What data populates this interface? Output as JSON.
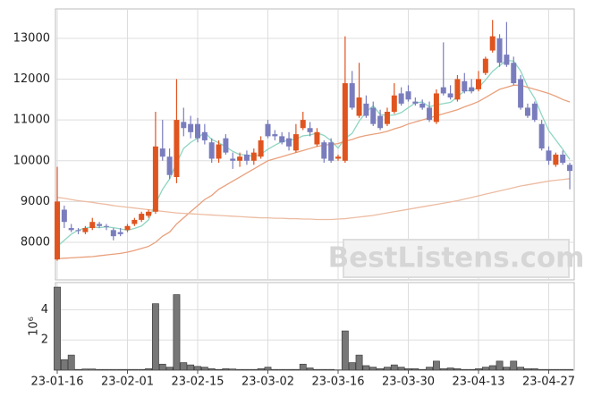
{
  "chart_data": [
    {
      "type": "candlestick",
      "open": [
        7580,
        8800,
        8350,
        8300,
        8250,
        8350,
        8450,
        8400,
        8300,
        8250,
        8300,
        8450,
        8550,
        8650,
        8750,
        10300,
        10100,
        9600,
        10950,
        10900,
        10900,
        10700,
        10450,
        10050,
        10550,
        10050,
        10000,
        10150,
        10000,
        10100,
        10900,
        10650,
        10600,
        10550,
        10250,
        10800,
        10800,
        10400,
        10450,
        10450,
        10050,
        10000,
        11900,
        11100,
        11400,
        11300,
        11100,
        10900,
        11200,
        11650,
        11700,
        11450,
        11400,
        11300,
        10950,
        11800,
        11650,
        11500,
        11950,
        11800,
        11750,
        12150,
        12700,
        13000,
        12600,
        12400,
        12000,
        11300,
        11400,
        10900,
        10250,
        9900,
        10150,
        9900
      ],
      "high": [
        9850,
        8900,
        8450,
        8350,
        8400,
        8600,
        8500,
        8450,
        8350,
        8350,
        8450,
        8600,
        8750,
        8800,
        11200,
        11000,
        10300,
        12000,
        11300,
        11100,
        11050,
        10900,
        10550,
        10500,
        10650,
        10200,
        10200,
        10250,
        10300,
        10600,
        11000,
        10750,
        10700,
        10700,
        10900,
        11200,
        10950,
        10800,
        10500,
        10550,
        10150,
        13050,
        12200,
        12400,
        11600,
        11450,
        11250,
        11300,
        11900,
        11800,
        11850,
        11550,
        11500,
        11450,
        11750,
        12900,
        11850,
        12100,
        12150,
        12000,
        12200,
        12550,
        13450,
        13100,
        13400,
        12550,
        12100,
        11400,
        11450,
        11000,
        10350,
        10200,
        10250,
        9950
      ],
      "low": [
        7550,
        8350,
        8250,
        8200,
        8200,
        8300,
        8350,
        8300,
        8050,
        8150,
        8250,
        8400,
        8500,
        8600,
        8700,
        10000,
        9550,
        9450,
        10600,
        10550,
        10450,
        10400,
        9950,
        9950,
        10150,
        9800,
        9850,
        9900,
        9900,
        10050,
        10550,
        10500,
        10400,
        10250,
        10200,
        10750,
        10600,
        10350,
        9950,
        9950,
        10000,
        9950,
        11250,
        11050,
        11050,
        10850,
        10750,
        10850,
        11150,
        11350,
        11450,
        11350,
        11250,
        10950,
        10900,
        11600,
        11500,
        11450,
        11650,
        11650,
        11700,
        12100,
        12650,
        12300,
        12300,
        11850,
        11250,
        11050,
        10950,
        10250,
        9900,
        9850,
        9900,
        9300
      ],
      "close": [
        9000,
        8500,
        8300,
        8280,
        8350,
        8500,
        8400,
        8380,
        8150,
        8200,
        8400,
        8550,
        8700,
        8750,
        10350,
        10100,
        9650,
        11000,
        10800,
        10700,
        10550,
        10500,
        10050,
        10400,
        10200,
        10000,
        10100,
        10000,
        10200,
        10500,
        10600,
        10600,
        10450,
        10350,
        10650,
        11000,
        10700,
        10700,
        10050,
        10000,
        10100,
        11900,
        11300,
        11550,
        11100,
        10900,
        10800,
        11200,
        11600,
        11400,
        11500,
        11400,
        11300,
        11000,
        11650,
        11650,
        11550,
        12000,
        11700,
        11700,
        12000,
        12500,
        13050,
        12400,
        12350,
        11900,
        11300,
        11100,
        11000,
        10300,
        10000,
        10150,
        9950,
        9750
      ],
      "up_color": "#e0541f",
      "down_color": "#7a7dbd",
      "series": [
        {
          "color": "#8fd6c2",
          "values": [
            7900,
            8050,
            8200,
            8300,
            8350,
            8380,
            8360,
            8380,
            8360,
            8330,
            8300,
            8340,
            8400,
            8550,
            8950,
            9300,
            9550,
            9950,
            10300,
            10450,
            10550,
            10700,
            10520,
            10440,
            10340,
            10230,
            10150,
            10140,
            10100,
            10160,
            10280,
            10380,
            10470,
            10500,
            10530,
            10610,
            10630,
            10680,
            10620,
            10490,
            10310,
            10550,
            10670,
            10970,
            11190,
            11350,
            11130,
            11110,
            11120,
            11180,
            11300,
            11420,
            11440,
            11320,
            11370,
            11400,
            11430,
            11570,
            11710,
            11720,
            11790,
            11980,
            12190,
            12330,
            12460,
            12440,
            12200,
            11810,
            11530,
            11120,
            10740,
            10510,
            10280,
            10030
          ]
        },
        {
          "color": "#e9a07c",
          "values": [
            7600,
            7610,
            7620,
            7630,
            7640,
            7650,
            7670,
            7690,
            7710,
            7730,
            7760,
            7800,
            7850,
            7900,
            8000,
            8150,
            8250,
            8450,
            8600,
            8750,
            8900,
            9050,
            9150,
            9300,
            9400,
            9500,
            9600,
            9700,
            9800,
            9900,
            10000,
            10050,
            10100,
            10150,
            10200,
            10250,
            10300,
            10350,
            10380,
            10400,
            10420,
            10480,
            10520,
            10580,
            10620,
            10650,
            10680,
            10720,
            10780,
            10830,
            10900,
            10950,
            11000,
            11050,
            11100,
            11150,
            11200,
            11250,
            11320,
            11380,
            11450,
            11550,
            11650,
            11750,
            11800,
            11850,
            11850,
            11800,
            11750,
            11700,
            11650,
            11580,
            11500,
            11440
          ]
        },
        {
          "color": "#ecbca2",
          "values": [
            9100,
            9080,
            9050,
            9020,
            9000,
            8980,
            8950,
            8930,
            8900,
            8880,
            8860,
            8840,
            8820,
            8800,
            8780,
            8760,
            8740,
            8720,
            8710,
            8700,
            8690,
            8680,
            8670,
            8660,
            8650,
            8640,
            8630,
            8620,
            8610,
            8600,
            8600,
            8590,
            8590,
            8580,
            8580,
            8570,
            8570,
            8560,
            8560,
            8560,
            8570,
            8580,
            8600,
            8620,
            8640,
            8660,
            8690,
            8720,
            8750,
            8780,
            8810,
            8840,
            8870,
            8900,
            8930,
            8960,
            8990,
            9020,
            9060,
            9100,
            9140,
            9180,
            9220,
            9260,
            9300,
            9340,
            9380,
            9410,
            9440,
            9470,
            9500,
            9520,
            9540,
            9560
          ]
        }
      ],
      "ylim": [
        7080,
        13720
      ],
      "yticks": [
        8000,
        9000,
        10000,
        11000,
        12000,
        13000
      ],
      "grid": true,
      "watermark": "BestListens.com"
    },
    {
      "type": "bar",
      "categories": [
        "23-01-16",
        null,
        null,
        null,
        null,
        null,
        null,
        null,
        null,
        null,
        "23-02-01",
        null,
        null,
        null,
        null,
        null,
        null,
        null,
        null,
        null,
        "23-02-15",
        null,
        null,
        null,
        null,
        null,
        null,
        null,
        null,
        null,
        "23-03-02",
        null,
        null,
        null,
        null,
        null,
        null,
        null,
        null,
        null,
        "23-03-16",
        null,
        null,
        null,
        null,
        null,
        null,
        null,
        null,
        null,
        "23-03-30",
        null,
        null,
        null,
        null,
        null,
        null,
        null,
        null,
        null,
        "23-04-13",
        null,
        null,
        null,
        null,
        null,
        null,
        null,
        null,
        null,
        "23-04-27",
        null,
        null,
        null
      ],
      "values": [
        5.5,
        0.7,
        1.0,
        0.05,
        0.08,
        0.08,
        0.05,
        0.05,
        0.05,
        0.05,
        0.05,
        0.05,
        0.05,
        0.1,
        4.4,
        0.4,
        0.2,
        5.0,
        0.5,
        0.35,
        0.25,
        0.2,
        0.1,
        0.05,
        0.1,
        0.08,
        0.05,
        0.05,
        0.05,
        0.1,
        0.2,
        0.05,
        0.05,
        0.05,
        0.05,
        0.4,
        0.15,
        0.05,
        0.05,
        0.05,
        0.02,
        2.6,
        0.5,
        1.0,
        0.3,
        0.2,
        0.1,
        0.2,
        0.35,
        0.2,
        0.1,
        0.1,
        0.05,
        0.2,
        0.6,
        0.1,
        0.15,
        0.1,
        0.05,
        0.05,
        0.1,
        0.2,
        0.3,
        0.6,
        0.2,
        0.6,
        0.2,
        0.1,
        0.1,
        0.05,
        0.05,
        0.05,
        0.05,
        0.05
      ],
      "color": "#777777",
      "ylim": [
        0,
        5.8
      ],
      "yticks": [
        2,
        4
      ],
      "ylabel": "10⁶",
      "grid": true
    }
  ]
}
